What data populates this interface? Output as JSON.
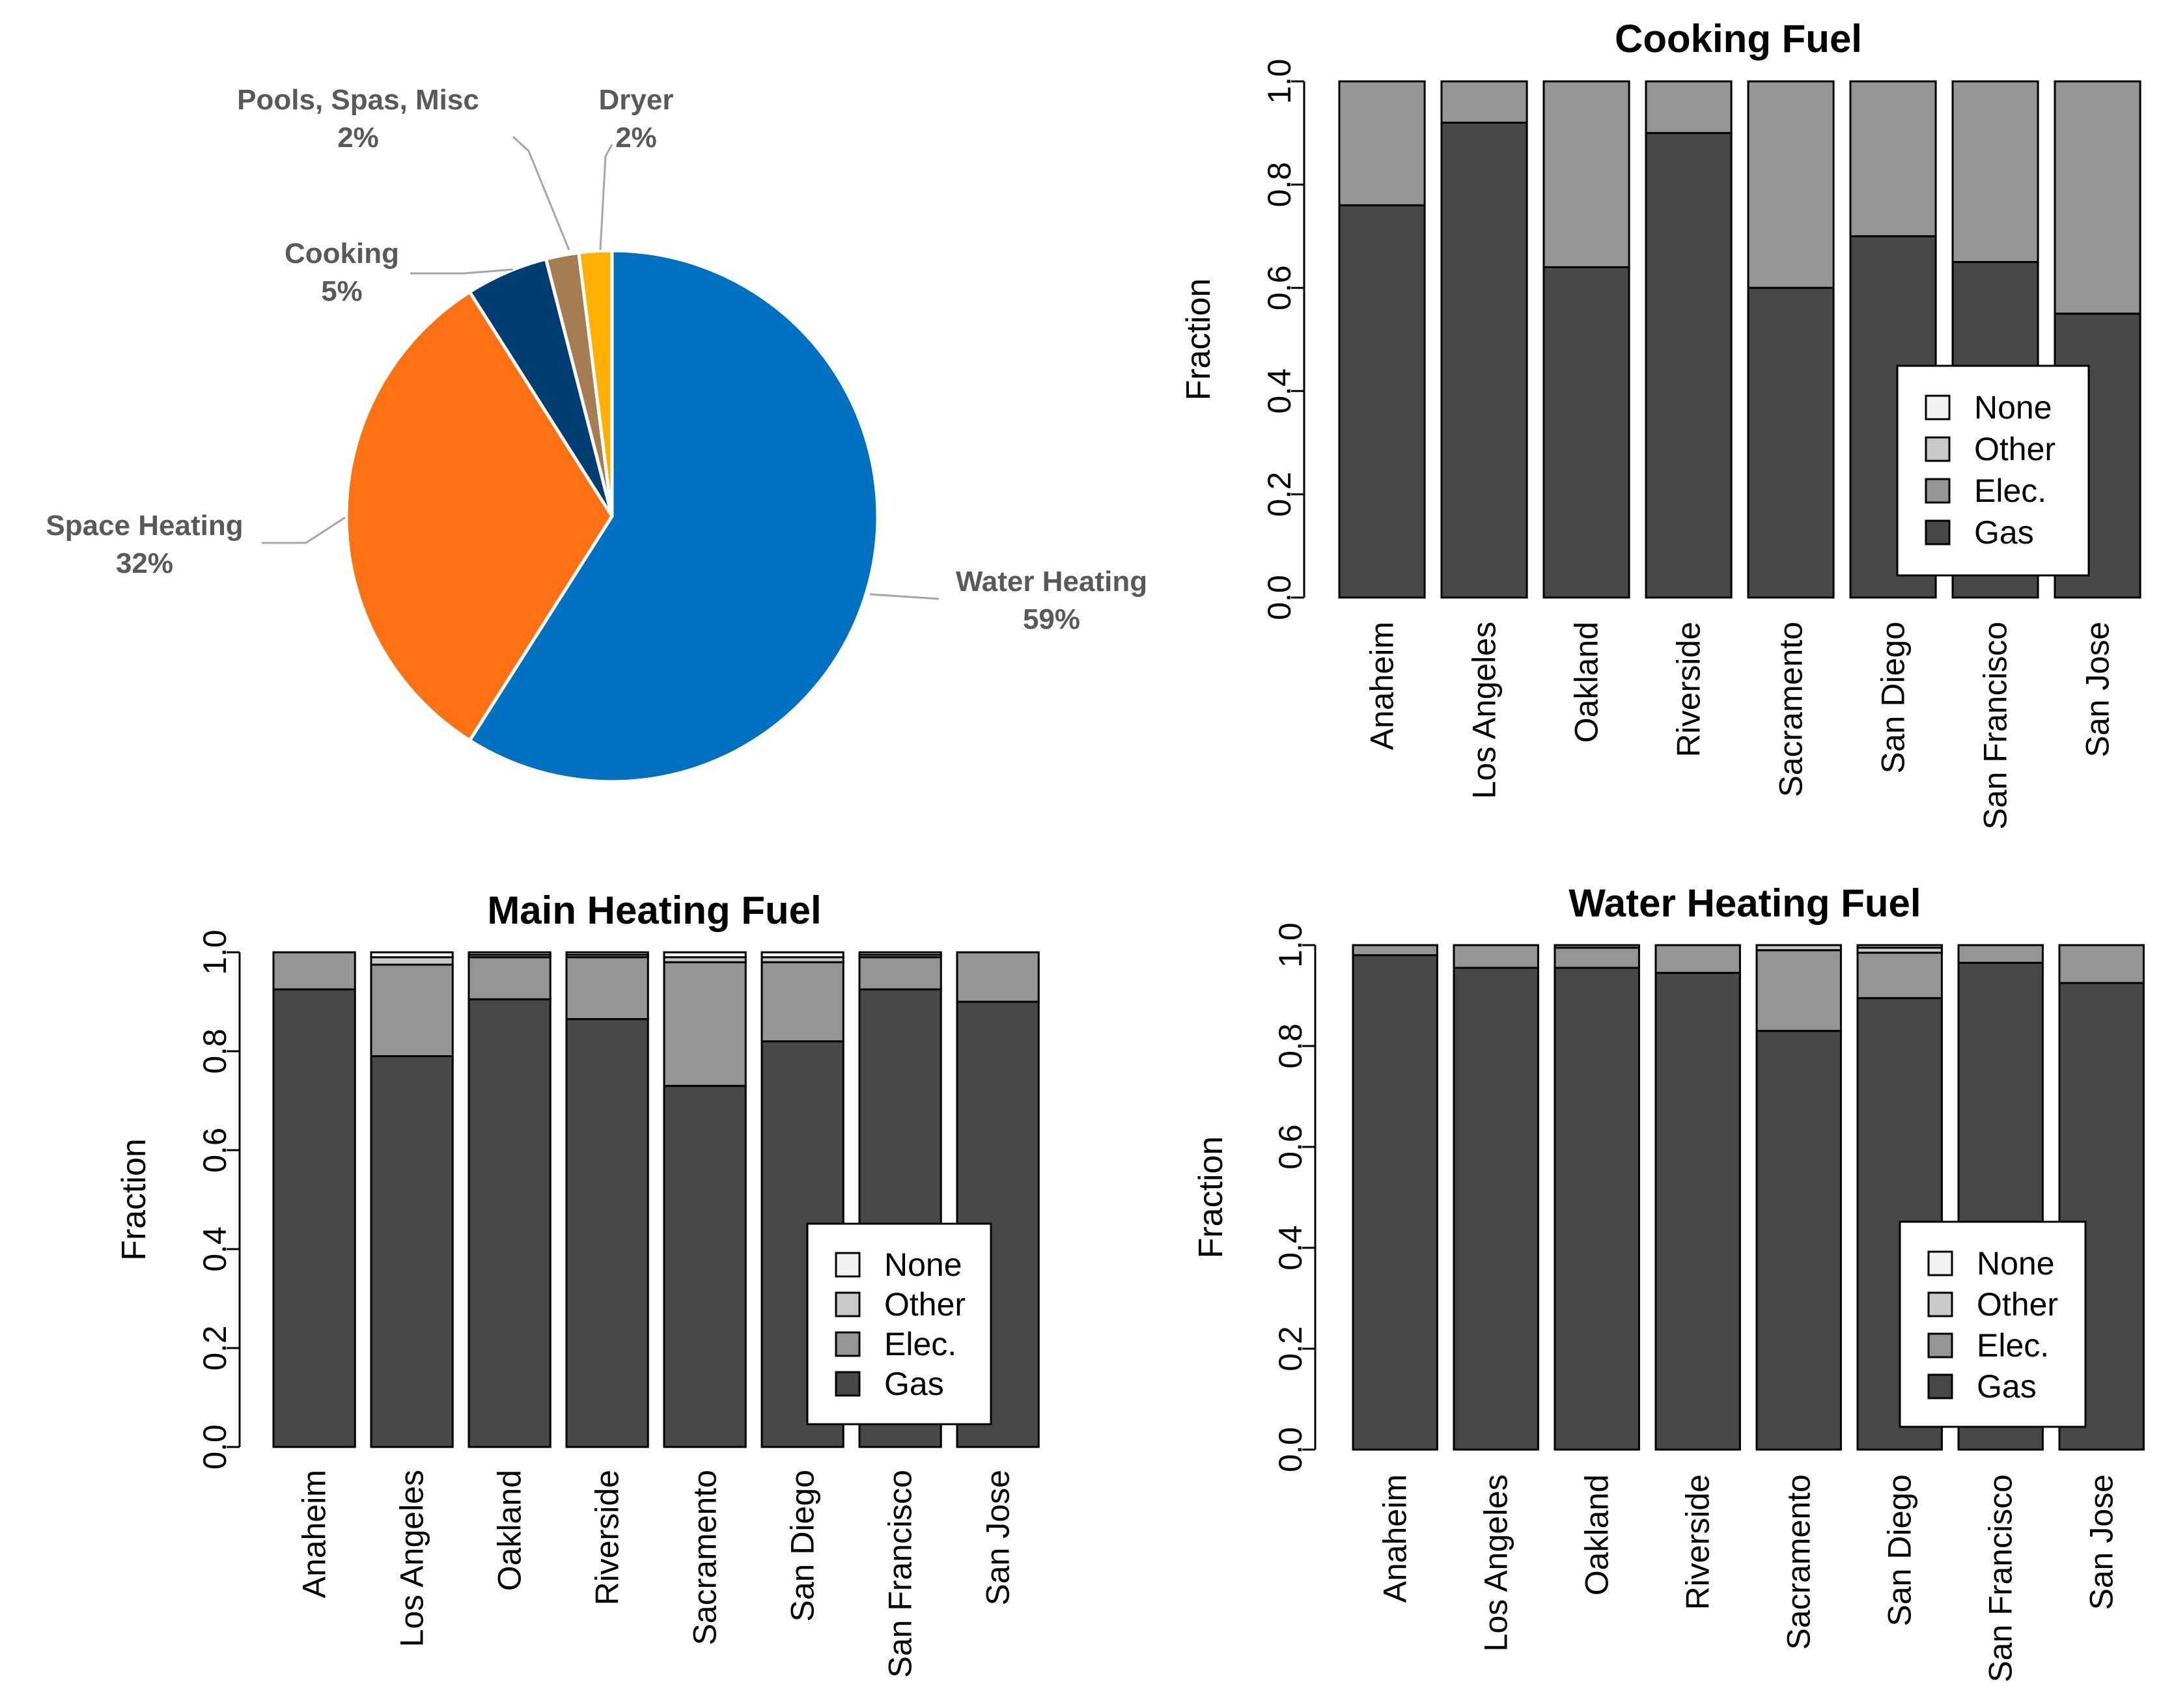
{
  "colors": {
    "Gas": "#484848",
    "Elec.": "#959595",
    "Other": "#c9c9c9",
    "None": "#f2f2f2",
    "Water Heating": "#0070c0",
    "Space Heating": "#fe7213",
    "Cooking": "#003d73",
    "Pools, Spas, Misc": "#a67c52",
    "Dryer": "#ffb000"
  },
  "chart_data": [
    {
      "type": "pie",
      "title": "",
      "slices": [
        {
          "label": "Water Heating",
          "pct_label": "59%",
          "value": 59
        },
        {
          "label": "Space Heating",
          "pct_label": "32%",
          "value": 32
        },
        {
          "label": "Cooking",
          "pct_label": "5%",
          "value": 5
        },
        {
          "label": "Pools, Spas, Misc",
          "pct_label": "2%",
          "value": 2
        },
        {
          "label": "Dryer",
          "pct_label": "2%",
          "value": 2
        }
      ]
    },
    {
      "type": "bar",
      "stacked": true,
      "title": "Cooking Fuel",
      "ylabel": "Fraction",
      "ylim": [
        0,
        1
      ],
      "yticks": [
        "0.0",
        "0.2",
        "0.4",
        "0.6",
        "0.8",
        "1.0"
      ],
      "categories": [
        "Anaheim",
        "Los Angeles",
        "Oakland",
        "Riverside",
        "Sacramento",
        "San Diego",
        "San Francisco",
        "San Jose"
      ],
      "series": [
        {
          "name": "Gas",
          "values": [
            0.76,
            0.92,
            0.64,
            0.9,
            0.6,
            0.7,
            0.65,
            0.55
          ]
        },
        {
          "name": "Elec.",
          "values": [
            0.24,
            0.08,
            0.36,
            0.1,
            0.4,
            0.3,
            0.35,
            0.45
          ]
        },
        {
          "name": "Other",
          "values": [
            0,
            0,
            0,
            0,
            0,
            0,
            0,
            0
          ]
        },
        {
          "name": "None",
          "values": [
            0,
            0,
            0,
            0,
            0,
            0,
            0,
            0
          ]
        }
      ],
      "legend": [
        "None",
        "Other",
        "Elec.",
        "Gas"
      ],
      "legend_position": "bottom-right"
    },
    {
      "type": "bar",
      "stacked": true,
      "title": "Main Heating Fuel",
      "ylabel": "Fraction",
      "ylim": [
        0,
        1
      ],
      "yticks": [
        "0.0",
        "0.2",
        "0.4",
        "0.6",
        "0.8",
        "1.0"
      ],
      "categories": [
        "Anaheim",
        "Los Angeles",
        "Oakland",
        "Riverside",
        "Sacramento",
        "San Diego",
        "San Francisco",
        "San Jose"
      ],
      "series": [
        {
          "name": "Gas",
          "values": [
            0.925,
            0.79,
            0.905,
            0.865,
            0.73,
            0.82,
            0.925,
            0.9
          ]
        },
        {
          "name": "Elec.",
          "values": [
            0.075,
            0.185,
            0.085,
            0.125,
            0.25,
            0.16,
            0.065,
            0.1
          ]
        },
        {
          "name": "Other",
          "values": [
            0,
            0.015,
            0.005,
            0.005,
            0.01,
            0.01,
            0.005,
            0
          ]
        },
        {
          "name": "None",
          "values": [
            0,
            0.01,
            0.005,
            0.005,
            0.01,
            0.01,
            0.005,
            0
          ]
        }
      ],
      "legend": [
        "None",
        "Other",
        "Elec.",
        "Gas"
      ],
      "legend_position": "bottom-right"
    },
    {
      "type": "bar",
      "stacked": true,
      "title": "Water Heating Fuel",
      "ylabel": "Fraction",
      "ylim": [
        0,
        1
      ],
      "yticks": [
        "0.0",
        "0.2",
        "0.4",
        "0.6",
        "0.8",
        "1.0"
      ],
      "categories": [
        "Anaheim",
        "Los Angeles",
        "Oakland",
        "Riverside",
        "Sacramento",
        "San Diego",
        "San Francisco",
        "San Jose"
      ],
      "series": [
        {
          "name": "Gas",
          "values": [
            0.98,
            0.955,
            0.955,
            0.945,
            0.83,
            0.895,
            0.965,
            0.925
          ]
        },
        {
          "name": "Elec.",
          "values": [
            0.02,
            0.045,
            0.04,
            0.055,
            0.16,
            0.09,
            0.035,
            0.075
          ]
        },
        {
          "name": "Other",
          "values": [
            0,
            0,
            0.005,
            0,
            0.01,
            0.01,
            0,
            0
          ]
        },
        {
          "name": "None",
          "values": [
            0,
            0,
            0,
            0,
            0,
            0.005,
            0,
            0
          ]
        }
      ],
      "legend": [
        "None",
        "Other",
        "Elec.",
        "Gas"
      ],
      "legend_position": "bottom-right"
    }
  ]
}
